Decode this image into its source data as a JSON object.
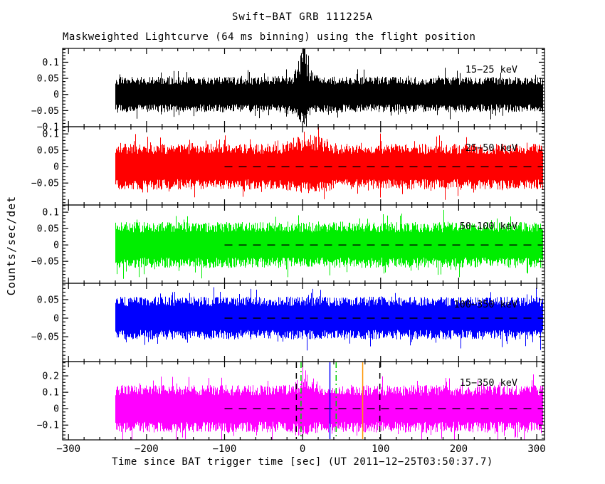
{
  "title": "Swift−BAT GRB 111225A",
  "subtitle": "Maskweighted Lightcurve (64 ms binning) using the flight position",
  "axis": {
    "x_label": "Time since BAT trigger time [sec] (UT 2011−12−25T03:50:37.7)",
    "y_label": "Counts/sec/det"
  },
  "chart_data": {
    "type": "line",
    "title": "Swift−BAT GRB 111225A",
    "subtitle": "Maskweighted Lightcurve (64 ms binning) using the flight position",
    "xlabel": "Time since BAT trigger time [sec] (UT 2011−12−25T03:50:37.7)",
    "ylabel": "Counts/sec/det",
    "grid": false,
    "legend_position": "in-panel-right",
    "xlim": [
      -307.5,
      310
    ],
    "xticks": [
      -300,
      -200,
      -100,
      0,
      100,
      200,
      300
    ],
    "x_minor_step": 20,
    "data_t_range": [
      -240,
      307
    ],
    "bin_sec": 0.064,
    "panels": [
      {
        "id": "band-15-25",
        "label": "15−25 keV",
        "color": "#000000",
        "ylim": [
          -0.1,
          0.143
        ],
        "yticks": [
          -0.1,
          -0.05,
          0,
          0.05,
          0.1
        ],
        "y_minor_step": 0.01,
        "noise_amp": 0.055,
        "seed": 101,
        "zero_dash": false,
        "burst": {
          "t": 0,
          "width": 5,
          "boost": 1.3,
          "width2": 24,
          "boost2": 0.28
        },
        "peak_counts": 0.13
      },
      {
        "id": "band-25-50",
        "label": "25−50 keV",
        "color": "#ff0000",
        "ylim": [
          -0.117,
          0.122
        ],
        "yticks": [
          -0.05,
          0,
          0.05,
          0.1
        ],
        "y_minor_step": 0.01,
        "noise_amp": 0.07,
        "seed": 202,
        "zero_dash": true,
        "burst": {
          "t": 8,
          "width": 16,
          "boost": 0.45,
          "width2": 0,
          "boost2": 0
        },
        "peak_counts": 0.1
      },
      {
        "id": "band-50-100",
        "label": "50−100 keV",
        "color": "#00ee00",
        "ylim": [
          -0.117,
          0.122
        ],
        "yticks": [
          -0.05,
          0,
          0.05,
          0.1
        ],
        "y_minor_step": 0.01,
        "noise_amp": 0.07,
        "seed": 303,
        "zero_dash": true,
        "burst": null,
        "peak_counts": 0.09
      },
      {
        "id": "band-100-350",
        "label": "100−350 keV",
        "color": "#0000ff",
        "ylim": [
          -0.117,
          0.094
        ],
        "yticks": [
          -0.05,
          0,
          0.05
        ],
        "y_minor_step": 0.01,
        "noise_amp": 0.058,
        "seed": 404,
        "zero_dash": true,
        "burst": null,
        "peak_counts": 0.08
      },
      {
        "id": "band-15-350",
        "label": "15−350 keV",
        "color": "#ff00ff",
        "ylim": [
          -0.19,
          0.287
        ],
        "yticks": [
          -0.1,
          0,
          0.1,
          0.2
        ],
        "y_minor_step": 0.02,
        "noise_amp": 0.145,
        "seed": 505,
        "zero_dash": true,
        "burst": {
          "t": 2,
          "width": 7,
          "boost": 0.55,
          "width2": 0,
          "boost2": 0
        },
        "peak_counts": 0.22
      }
    ],
    "zero_line": {
      "style": "dashed",
      "color": "#000000",
      "from_t": -100,
      "to_t": 310
    },
    "markers": [
      {
        "t": -8,
        "color": "#000000",
        "style": "dashed"
      },
      {
        "t": -2,
        "color": "#00cc00",
        "style": "dashdot"
      },
      {
        "t": 35,
        "color": "#0000ff",
        "style": "solid"
      },
      {
        "t": 43,
        "color": "#00cc00",
        "style": "dashdot"
      },
      {
        "t": 77,
        "color": "#ff9500",
        "style": "solid"
      },
      {
        "t": 99,
        "color": "#000000",
        "style": "dashed"
      }
    ]
  }
}
